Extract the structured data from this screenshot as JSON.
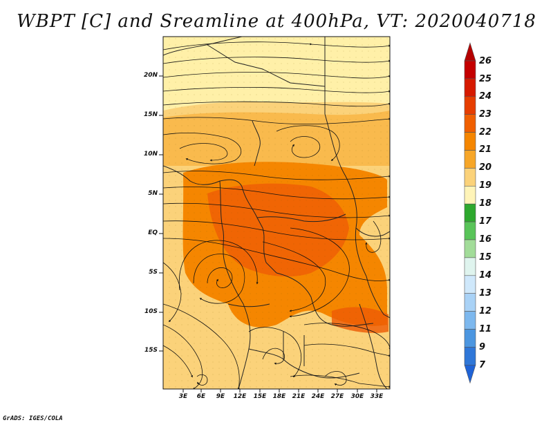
{
  "title": "WBPT [C] and Sreamline at 400hPa, VT: 2020040718",
  "credit": "GrADS: IGES/COLA",
  "map": {
    "lat_labels": [
      "20N",
      "15N",
      "10N",
      "5N",
      "EQ",
      "5S",
      "10S",
      "15S"
    ],
    "lon_labels": [
      "3E",
      "6E",
      "9E",
      "12E",
      "15E",
      "18E",
      "21E",
      "24E",
      "27E",
      "30E",
      "33E"
    ]
  },
  "colorbar": {
    "labels": [
      "26",
      "25",
      "24",
      "23",
      "22",
      "21",
      "20",
      "19",
      "18",
      "17",
      "16",
      "15",
      "14",
      "13",
      "12",
      "11",
      "9",
      "7"
    ],
    "colors": {
      "top_arrow": "#b50000",
      "bottom_arrow": "#1f63d6",
      "segments": [
        "#c40000",
        "#d61a00",
        "#e63d00",
        "#f05f00",
        "#f58600",
        "#f7a628",
        "#fbd27a",
        "#fff4b8",
        "#2ea82e",
        "#59c459",
        "#a2dc99",
        "#dff4ee",
        "#cfe8fb",
        "#a9d2f6",
        "#7db8ee",
        "#4c96e0",
        "#2f77d8"
      ]
    }
  }
}
